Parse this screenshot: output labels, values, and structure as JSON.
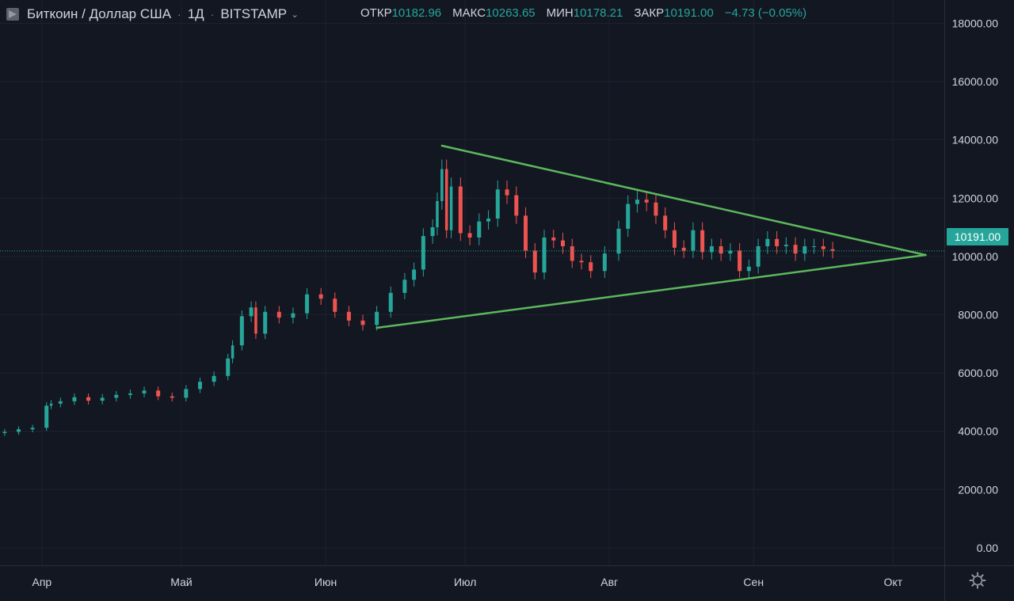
{
  "header": {
    "symbol_name": "Биткоин / Доллар США",
    "interval": "1Д",
    "exchange": "BITSTAMP",
    "ohlc": [
      {
        "label": "ОТКР",
        "value": "10182.96"
      },
      {
        "label": "МАКС",
        "value": "10263.65"
      },
      {
        "label": "МИН",
        "value": "10178.21"
      },
      {
        "label": "ЗАКР",
        "value": "10191.00"
      }
    ],
    "change": "−4.73 (−0.05%)"
  },
  "last_price_label": "10191.00",
  "colors": {
    "background": "#131722",
    "grid": "#1e2230",
    "up": "#26a69a",
    "down": "#ef5350",
    "trendline": "#5cb85c",
    "price_line": "#26a69a"
  },
  "icons": [
    "symbol-icon",
    "caret-down-icon",
    "gear-icon"
  ],
  "chart_data": {
    "type": "candlestick",
    "title": "Биткоин / Доллар США · 1Д · BITSTAMP",
    "y_axis": {
      "ticks": [
        "0.00",
        "2000.00",
        "4000.00",
        "6000.00",
        "8000.00",
        "10000.00",
        "12000.00",
        "14000.00",
        "16000.00",
        "18000.00"
      ],
      "range": [
        -600,
        18800
      ],
      "position": "right"
    },
    "x_axis": {
      "ticks": [
        "Апр",
        "Май",
        "Июн",
        "Июл",
        "Авг",
        "Сен",
        "Окт"
      ],
      "range": [
        "2019-03-23",
        "2019-10-12"
      ]
    },
    "grid": true,
    "last_price": 10191.0,
    "series": [
      {
        "name": "BTCUSD",
        "closes": [
          [
            "2019-03-24",
            3980
          ],
          [
            "2019-03-27",
            4070
          ],
          [
            "2019-03-30",
            4120
          ],
          [
            "2019-04-02",
            4880
          ],
          [
            "2019-04-03",
            4950
          ],
          [
            "2019-04-05",
            5030
          ],
          [
            "2019-04-08",
            5170
          ],
          [
            "2019-04-11",
            5050
          ],
          [
            "2019-04-14",
            5150
          ],
          [
            "2019-04-17",
            5250
          ],
          [
            "2019-04-20",
            5300
          ],
          [
            "2019-04-23",
            5400
          ],
          [
            "2019-04-26",
            5200
          ],
          [
            "2019-04-29",
            5150
          ],
          [
            "2019-05-02",
            5450
          ],
          [
            "2019-05-05",
            5700
          ],
          [
            "2019-05-08",
            5900
          ],
          [
            "2019-05-11",
            6500
          ],
          [
            "2019-05-12",
            6950
          ],
          [
            "2019-05-14",
            7950
          ],
          [
            "2019-05-16",
            8250
          ],
          [
            "2019-05-17",
            7350
          ],
          [
            "2019-05-19",
            8100
          ],
          [
            "2019-05-22",
            7900
          ],
          [
            "2019-05-25",
            8050
          ],
          [
            "2019-05-28",
            8700
          ],
          [
            "2019-05-31",
            8550
          ],
          [
            "2019-06-03",
            8100
          ],
          [
            "2019-06-06",
            7800
          ],
          [
            "2019-06-09",
            7650
          ],
          [
            "2019-06-12",
            8100
          ],
          [
            "2019-06-15",
            8750
          ],
          [
            "2019-06-18",
            9200
          ],
          [
            "2019-06-20",
            9550
          ],
          [
            "2019-06-22",
            10700
          ],
          [
            "2019-06-24",
            11000
          ],
          [
            "2019-06-25",
            11900
          ],
          [
            "2019-06-26",
            13000
          ],
          [
            "2019-06-27",
            10900
          ],
          [
            "2019-06-28",
            12400
          ],
          [
            "2019-06-30",
            10800
          ],
          [
            "2019-07-02",
            10650
          ],
          [
            "2019-07-04",
            11200
          ],
          [
            "2019-07-06",
            11300
          ],
          [
            "2019-07-08",
            12300
          ],
          [
            "2019-07-10",
            12100
          ],
          [
            "2019-07-12",
            11400
          ],
          [
            "2019-07-14",
            10200
          ],
          [
            "2019-07-16",
            9450
          ],
          [
            "2019-07-18",
            10650
          ],
          [
            "2019-07-20",
            10550
          ],
          [
            "2019-07-22",
            10350
          ],
          [
            "2019-07-24",
            9850
          ],
          [
            "2019-07-26",
            9800
          ],
          [
            "2019-07-28",
            9500
          ],
          [
            "2019-07-31",
            10100
          ],
          [
            "2019-08-03",
            10950
          ],
          [
            "2019-08-05",
            11800
          ],
          [
            "2019-08-07",
            11950
          ],
          [
            "2019-08-09",
            11850
          ],
          [
            "2019-08-11",
            11400
          ],
          [
            "2019-08-13",
            10900
          ],
          [
            "2019-08-15",
            10300
          ],
          [
            "2019-08-17",
            10200
          ],
          [
            "2019-08-19",
            10900
          ],
          [
            "2019-08-21",
            10150
          ],
          [
            "2019-08-23",
            10350
          ],
          [
            "2019-08-25",
            10100
          ],
          [
            "2019-08-27",
            10200
          ],
          [
            "2019-08-29",
            9500
          ],
          [
            "2019-08-31",
            9650
          ],
          [
            "2019-09-02",
            10350
          ],
          [
            "2019-09-04",
            10600
          ],
          [
            "2019-09-06",
            10350
          ],
          [
            "2019-09-08",
            10400
          ],
          [
            "2019-09-10",
            10100
          ],
          [
            "2019-09-12",
            10350
          ],
          [
            "2019-09-14",
            10350
          ],
          [
            "2019-09-16",
            10250
          ],
          [
            "2019-09-18",
            10191
          ]
        ]
      }
    ],
    "annotations": [
      {
        "type": "trendline",
        "from": [
          "2019-06-26",
          13800
        ],
        "to": [
          "2019-10-08",
          10050
        ]
      },
      {
        "type": "trendline",
        "from": [
          "2019-06-12",
          7550
        ],
        "to": [
          "2019-10-08",
          10050
        ]
      },
      {
        "type": "price_line",
        "value": 10191.0,
        "label": "10191.00"
      }
    ]
  }
}
